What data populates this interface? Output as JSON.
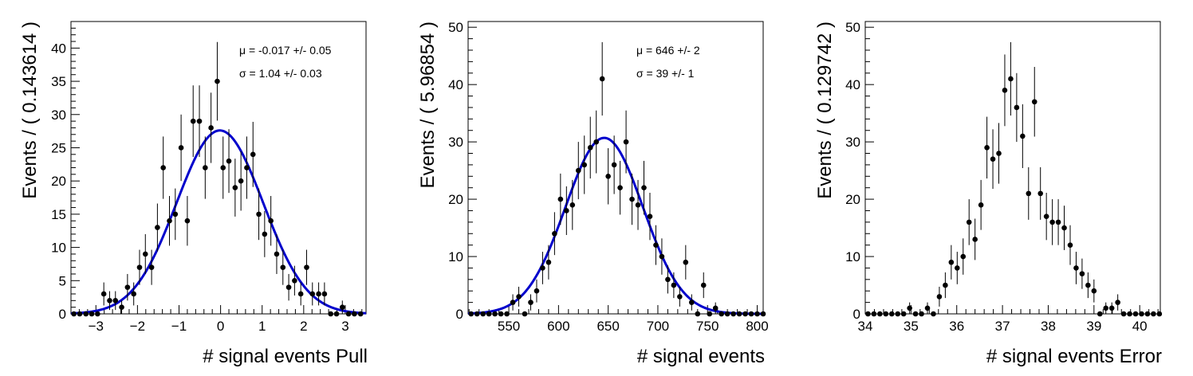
{
  "chart_data": [
    {
      "type": "scatter",
      "xlabel": "# signal events Pull",
      "ylabel": "Events / ( 0.143614 )",
      "xlim": [
        -3.6,
        3.5
      ],
      "ylim": [
        0,
        44
      ],
      "xticks": [
        -3,
        -2,
        -1,
        0,
        1,
        2,
        3
      ],
      "yticks": [
        0,
        5,
        10,
        15,
        20,
        25,
        30,
        35,
        40
      ],
      "annotations": [
        "μ = -0.017 +/- 0.05",
        "σ =  1.04 +/- 0.03"
      ],
      "fit": {
        "type": "gaussian",
        "mean": -0.017,
        "sigma": 1.04,
        "peak": 27.6,
        "color": "#0000cc"
      },
      "points": {
        "x": [
          -3.53,
          -3.39,
          -3.24,
          -3.1,
          -2.96,
          -2.81,
          -2.67,
          -2.53,
          -2.38,
          -2.24,
          -2.09,
          -1.95,
          -1.81,
          -1.66,
          -1.52,
          -1.38,
          -1.23,
          -1.09,
          -0.95,
          -0.8,
          -0.66,
          -0.51,
          -0.37,
          -0.23,
          -0.08,
          0.06,
          0.2,
          0.35,
          0.49,
          0.63,
          0.78,
          0.92,
          1.06,
          1.21,
          1.35,
          1.5,
          1.64,
          1.78,
          1.93,
          2.07,
          2.21,
          2.36,
          2.5,
          2.65,
          2.79,
          2.93,
          3.08,
          3.22,
          3.37
        ],
        "y": [
          0,
          0,
          0,
          0,
          0,
          3,
          2,
          2,
          1,
          4,
          3,
          7,
          9,
          7,
          13,
          22,
          14,
          15,
          25,
          14,
          29,
          29,
          22,
          28,
          35,
          22,
          23,
          19,
          20,
          22,
          24,
          15,
          12,
          14,
          9,
          7,
          4,
          5,
          3,
          7,
          3,
          3,
          3,
          0,
          0,
          1,
          0,
          0,
          0
        ]
      }
    },
    {
      "type": "scatter",
      "xlabel": "# signal events",
      "ylabel": "Events / ( 5.96854 )",
      "xlim": [
        509,
        806
      ],
      "ylim": [
        0,
        51
      ],
      "xticks": [
        550,
        600,
        650,
        700,
        750,
        800
      ],
      "yticks": [
        0,
        10,
        20,
        30,
        40,
        50
      ],
      "annotations": [
        "μ =  646 +/- 2",
        "σ =  39 +/- 1"
      ],
      "fit": {
        "type": "gaussian",
        "mean": 646,
        "sigma": 39,
        "peak": 30.7,
        "color": "#0000cc"
      },
      "points": {
        "x": [
          512,
          518,
          524,
          530,
          536,
          542,
          548,
          554,
          560,
          566,
          572,
          578,
          584,
          590,
          596,
          602,
          608,
          614,
          620,
          626,
          632,
          638,
          644,
          650,
          656,
          662,
          668,
          674,
          680,
          686,
          692,
          698,
          704,
          710,
          716,
          722,
          728,
          734,
          740,
          746,
          752,
          758,
          764,
          770,
          776,
          782,
          788,
          794,
          800,
          806
        ],
        "y": [
          0,
          0,
          0,
          0,
          0,
          0,
          0,
          2,
          3,
          0,
          2,
          4,
          8,
          9,
          14,
          20,
          18,
          19,
          25,
          26,
          29,
          30,
          41,
          24,
          26,
          22,
          30,
          20,
          19,
          22,
          17,
          12,
          10,
          6,
          5,
          3,
          9,
          2,
          0,
          5,
          0,
          1,
          0,
          0,
          0,
          0,
          0,
          0,
          0,
          0
        ]
      }
    },
    {
      "type": "scatter",
      "xlabel": "# signal events Error",
      "ylabel": "Events / ( 0.129742 )",
      "xlim": [
        34,
        40.45
      ],
      "ylim": [
        0,
        51
      ],
      "xticks": [
        34,
        35,
        36,
        37,
        38,
        39,
        40
      ],
      "yticks": [
        0,
        10,
        20,
        30,
        40,
        50
      ],
      "annotations": [],
      "points": {
        "x": [
          34.06,
          34.19,
          34.32,
          34.45,
          34.58,
          34.71,
          34.84,
          34.97,
          35.1,
          35.23,
          35.36,
          35.49,
          35.62,
          35.75,
          35.88,
          36.01,
          36.14,
          36.27,
          36.4,
          36.53,
          36.66,
          36.79,
          36.92,
          37.05,
          37.18,
          37.31,
          37.44,
          37.57,
          37.7,
          37.83,
          37.96,
          38.09,
          38.22,
          38.35,
          38.48,
          38.61,
          38.74,
          38.87,
          39.0,
          39.13,
          39.26,
          39.39,
          39.52,
          39.65,
          39.78,
          39.91,
          40.04,
          40.17,
          40.3,
          40.43
        ],
        "y": [
          0,
          0,
          0,
          0,
          0,
          0,
          0,
          1,
          0,
          0,
          1,
          0,
          3,
          5,
          9,
          8,
          10,
          16,
          13,
          19,
          29,
          27,
          28,
          39,
          41,
          36,
          31,
          21,
          37,
          21,
          17,
          16,
          16,
          15,
          12,
          8,
          7,
          5,
          4,
          0,
          1,
          1,
          2,
          0,
          0,
          0,
          0,
          0,
          0,
          0
        ]
      }
    }
  ]
}
